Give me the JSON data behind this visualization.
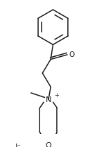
{
  "bg_color": "#ffffff",
  "line_color": "#1a1a1a",
  "line_width": 1.1,
  "font_size": 7.5,
  "figsize": [
    1.53,
    2.12
  ],
  "dpi": 100,
  "xlim": [
    -1.1,
    1.1
  ],
  "ylim": [
    -1.6,
    1.3
  ]
}
